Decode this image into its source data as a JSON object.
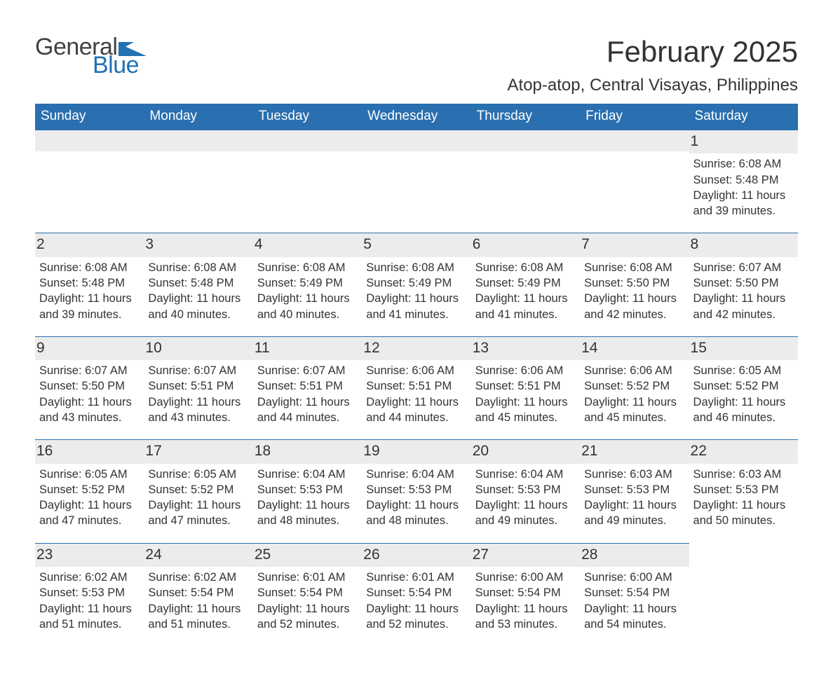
{
  "brand": {
    "word1": "General",
    "word2": "Blue",
    "color_general": "#414141",
    "color_blue": "#2271b3",
    "glyph_color": "#2271b3"
  },
  "header": {
    "month_title": "February 2025",
    "location": "Atop-atop, Central Visayas, Philippines"
  },
  "styling": {
    "header_bg": "#2a6fb0",
    "header_text": "#ffffff",
    "daynum_bg": "#ececec",
    "row_border": "#2a6fb0",
    "body_text": "#333333",
    "page_bg": "#ffffff",
    "font_family": "Arial",
    "th_fontsize": 19,
    "daynum_fontsize": 21,
    "cell_fontsize": 16.5,
    "title_fontsize": 42,
    "location_fontsize": 24
  },
  "weekdays": [
    "Sunday",
    "Monday",
    "Tuesday",
    "Wednesday",
    "Thursday",
    "Friday",
    "Saturday"
  ],
  "weeks": [
    [
      null,
      null,
      null,
      null,
      null,
      null,
      {
        "n": "1",
        "sunrise": "Sunrise: 6:08 AM",
        "sunset": "Sunset: 5:48 PM",
        "daylight": "Daylight: 11 hours and 39 minutes."
      }
    ],
    [
      {
        "n": "2",
        "sunrise": "Sunrise: 6:08 AM",
        "sunset": "Sunset: 5:48 PM",
        "daylight": "Daylight: 11 hours and 39 minutes."
      },
      {
        "n": "3",
        "sunrise": "Sunrise: 6:08 AM",
        "sunset": "Sunset: 5:48 PM",
        "daylight": "Daylight: 11 hours and 40 minutes."
      },
      {
        "n": "4",
        "sunrise": "Sunrise: 6:08 AM",
        "sunset": "Sunset: 5:49 PM",
        "daylight": "Daylight: 11 hours and 40 minutes."
      },
      {
        "n": "5",
        "sunrise": "Sunrise: 6:08 AM",
        "sunset": "Sunset: 5:49 PM",
        "daylight": "Daylight: 11 hours and 41 minutes."
      },
      {
        "n": "6",
        "sunrise": "Sunrise: 6:08 AM",
        "sunset": "Sunset: 5:49 PM",
        "daylight": "Daylight: 11 hours and 41 minutes."
      },
      {
        "n": "7",
        "sunrise": "Sunrise: 6:08 AM",
        "sunset": "Sunset: 5:50 PM",
        "daylight": "Daylight: 11 hours and 42 minutes."
      },
      {
        "n": "8",
        "sunrise": "Sunrise: 6:07 AM",
        "sunset": "Sunset: 5:50 PM",
        "daylight": "Daylight: 11 hours and 42 minutes."
      }
    ],
    [
      {
        "n": "9",
        "sunrise": "Sunrise: 6:07 AM",
        "sunset": "Sunset: 5:50 PM",
        "daylight": "Daylight: 11 hours and 43 minutes."
      },
      {
        "n": "10",
        "sunrise": "Sunrise: 6:07 AM",
        "sunset": "Sunset: 5:51 PM",
        "daylight": "Daylight: 11 hours and 43 minutes."
      },
      {
        "n": "11",
        "sunrise": "Sunrise: 6:07 AM",
        "sunset": "Sunset: 5:51 PM",
        "daylight": "Daylight: 11 hours and 44 minutes."
      },
      {
        "n": "12",
        "sunrise": "Sunrise: 6:06 AM",
        "sunset": "Sunset: 5:51 PM",
        "daylight": "Daylight: 11 hours and 44 minutes."
      },
      {
        "n": "13",
        "sunrise": "Sunrise: 6:06 AM",
        "sunset": "Sunset: 5:51 PM",
        "daylight": "Daylight: 11 hours and 45 minutes."
      },
      {
        "n": "14",
        "sunrise": "Sunrise: 6:06 AM",
        "sunset": "Sunset: 5:52 PM",
        "daylight": "Daylight: 11 hours and 45 minutes."
      },
      {
        "n": "15",
        "sunrise": "Sunrise: 6:05 AM",
        "sunset": "Sunset: 5:52 PM",
        "daylight": "Daylight: 11 hours and 46 minutes."
      }
    ],
    [
      {
        "n": "16",
        "sunrise": "Sunrise: 6:05 AM",
        "sunset": "Sunset: 5:52 PM",
        "daylight": "Daylight: 11 hours and 47 minutes."
      },
      {
        "n": "17",
        "sunrise": "Sunrise: 6:05 AM",
        "sunset": "Sunset: 5:52 PM",
        "daylight": "Daylight: 11 hours and 47 minutes."
      },
      {
        "n": "18",
        "sunrise": "Sunrise: 6:04 AM",
        "sunset": "Sunset: 5:53 PM",
        "daylight": "Daylight: 11 hours and 48 minutes."
      },
      {
        "n": "19",
        "sunrise": "Sunrise: 6:04 AM",
        "sunset": "Sunset: 5:53 PM",
        "daylight": "Daylight: 11 hours and 48 minutes."
      },
      {
        "n": "20",
        "sunrise": "Sunrise: 6:04 AM",
        "sunset": "Sunset: 5:53 PM",
        "daylight": "Daylight: 11 hours and 49 minutes."
      },
      {
        "n": "21",
        "sunrise": "Sunrise: 6:03 AM",
        "sunset": "Sunset: 5:53 PM",
        "daylight": "Daylight: 11 hours and 49 minutes."
      },
      {
        "n": "22",
        "sunrise": "Sunrise: 6:03 AM",
        "sunset": "Sunset: 5:53 PM",
        "daylight": "Daylight: 11 hours and 50 minutes."
      }
    ],
    [
      {
        "n": "23",
        "sunrise": "Sunrise: 6:02 AM",
        "sunset": "Sunset: 5:53 PM",
        "daylight": "Daylight: 11 hours and 51 minutes."
      },
      {
        "n": "24",
        "sunrise": "Sunrise: 6:02 AM",
        "sunset": "Sunset: 5:54 PM",
        "daylight": "Daylight: 11 hours and 51 minutes."
      },
      {
        "n": "25",
        "sunrise": "Sunrise: 6:01 AM",
        "sunset": "Sunset: 5:54 PM",
        "daylight": "Daylight: 11 hours and 52 minutes."
      },
      {
        "n": "26",
        "sunrise": "Sunrise: 6:01 AM",
        "sunset": "Sunset: 5:54 PM",
        "daylight": "Daylight: 11 hours and 52 minutes."
      },
      {
        "n": "27",
        "sunrise": "Sunrise: 6:00 AM",
        "sunset": "Sunset: 5:54 PM",
        "daylight": "Daylight: 11 hours and 53 minutes."
      },
      {
        "n": "28",
        "sunrise": "Sunrise: 6:00 AM",
        "sunset": "Sunset: 5:54 PM",
        "daylight": "Daylight: 11 hours and 54 minutes."
      },
      null
    ]
  ]
}
